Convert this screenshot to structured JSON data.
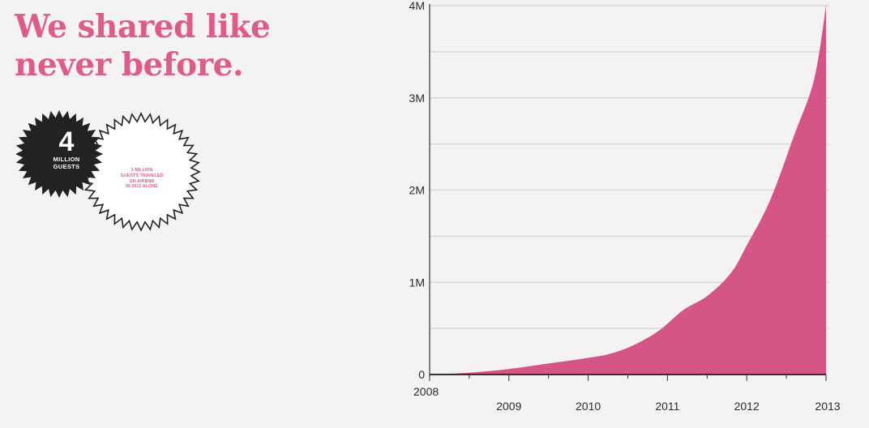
{
  "headline": {
    "line1": "We shared like",
    "line2": "never before."
  },
  "badge_black": {
    "number": "4",
    "line1": "MILLION",
    "line2": "GUESTS"
  },
  "badge_white": {
    "lines": [
      "3 MILLION",
      "GUESTS TRAVELED",
      "ON AIRBNB",
      "IN 2012 ALONE"
    ]
  },
  "colors": {
    "accent": "#dc5c8b",
    "area": "#d55586",
    "badge_dark": "#222222"
  },
  "chart_data": {
    "type": "area",
    "title": "",
    "xlabel": "",
    "ylabel": "",
    "x_ticks": [
      "2008",
      "2009",
      "2010",
      "2011",
      "2012",
      "2013"
    ],
    "y_ticks": [
      "0",
      "1M",
      "2M",
      "3M",
      "4M"
    ],
    "xlim": [
      2008,
      2013
    ],
    "ylim": [
      0,
      4000000
    ],
    "grid": true,
    "series": [
      {
        "values": [
          [
            2008.0,
            0
          ],
          [
            2008.5,
            20000
          ],
          [
            2009.0,
            60000
          ],
          [
            2009.5,
            120000
          ],
          [
            2010.0,
            180000
          ],
          [
            2010.3,
            230000
          ],
          [
            2010.6,
            330000
          ],
          [
            2010.9,
            480000
          ],
          [
            2011.2,
            700000
          ],
          [
            2011.5,
            850000
          ],
          [
            2011.8,
            1100000
          ],
          [
            2012.0,
            1400000
          ],
          [
            2012.3,
            1900000
          ],
          [
            2012.6,
            2600000
          ],
          [
            2012.85,
            3200000
          ],
          [
            2013.0,
            4000000
          ]
        ]
      }
    ]
  }
}
